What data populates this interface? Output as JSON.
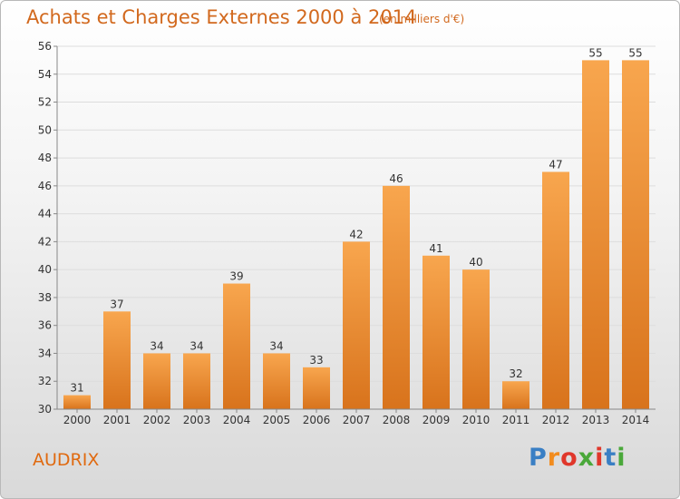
{
  "header": {
    "title": "Achats et Charges Externes 2000 à 2014",
    "unit": "(en milliers d'€)"
  },
  "footer": {
    "commune": "AUDRIX",
    "logo_letters": [
      "P",
      "r",
      "o",
      "x",
      "i",
      "t",
      "i"
    ],
    "logo_colors": [
      "#3a7fc4",
      "#f28c1e",
      "#e0372b",
      "#4aa83a",
      "#e0372b",
      "#3a7fc4",
      "#4aa83a"
    ]
  },
  "colors": {
    "bar_light": "#f8a64e",
    "bar_dark": "#d8731c",
    "grid": "#dddddd",
    "axis": "#888888"
  },
  "chart_data": {
    "type": "bar",
    "title": "Achats et Charges Externes 2000 à 2014",
    "categories": [
      "2000",
      "2001",
      "2002",
      "2003",
      "2004",
      "2005",
      "2006",
      "2007",
      "2008",
      "2009",
      "2010",
      "2011",
      "2012",
      "2013",
      "2014"
    ],
    "values": [
      31,
      37,
      34,
      34,
      39,
      34,
      33,
      42,
      46,
      41,
      40,
      32,
      47,
      55,
      55
    ],
    "yticks": [
      30,
      32,
      34,
      36,
      38,
      40,
      42,
      44,
      46,
      48,
      50,
      52,
      54,
      56
    ],
    "ylim": [
      30,
      56
    ],
    "grid": true,
    "xlabel": "",
    "ylabel": ""
  }
}
